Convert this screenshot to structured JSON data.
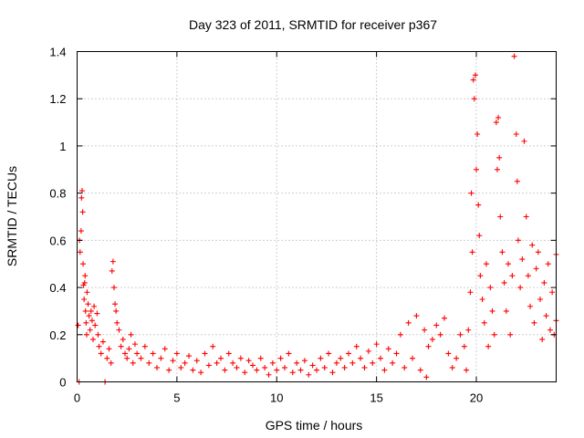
{
  "chart_data": {
    "type": "scatter",
    "title": "Day 323 of 2011, SRMTID for receiver p367",
    "xlabel": "GPS time / hours",
    "ylabel": "SRMTID / TECUs",
    "xlim": [
      0,
      24
    ],
    "ylim": [
      0,
      1.4
    ],
    "xticks": [
      0,
      5,
      10,
      15,
      20
    ],
    "xtick_labels": [
      "0",
      "5",
      "10",
      "15",
      "20"
    ],
    "yticks": [
      0,
      0.2,
      0.4,
      0.6,
      0.8,
      1.0,
      1.2,
      1.4
    ],
    "ytick_labels": [
      "0",
      "0.2",
      "0.4",
      "0.6",
      "0.8",
      "1",
      "1.2",
      "1.4"
    ],
    "grid": true,
    "marker": "+",
    "color": "#ff0000",
    "series": [
      {
        "name": "p367",
        "points": [
          [
            0.05,
            0.24
          ],
          [
            0.1,
            0.0
          ],
          [
            0.12,
            0.6
          ],
          [
            0.15,
            0.55
          ],
          [
            0.2,
            0.64
          ],
          [
            0.22,
            0.78
          ],
          [
            0.25,
            0.81
          ],
          [
            0.28,
            0.72
          ],
          [
            0.3,
            0.5
          ],
          [
            0.32,
            0.41
          ],
          [
            0.35,
            0.35
          ],
          [
            0.38,
            0.42
          ],
          [
            0.4,
            0.45
          ],
          [
            0.42,
            0.3
          ],
          [
            0.45,
            0.25
          ],
          [
            0.48,
            0.2
          ],
          [
            0.5,
            0.38
          ],
          [
            0.55,
            0.33
          ],
          [
            0.6,
            0.28
          ],
          [
            0.65,
            0.22
          ],
          [
            0.7,
            0.3
          ],
          [
            0.75,
            0.26
          ],
          [
            0.8,
            0.18
          ],
          [
            0.85,
            0.32
          ],
          [
            0.9,
            0.24
          ],
          [
            1.0,
            0.29
          ],
          [
            1.05,
            0.2
          ],
          [
            1.1,
            0.15
          ],
          [
            1.2,
            0.12
          ],
          [
            1.3,
            0.17
          ],
          [
            1.4,
            0.0
          ],
          [
            1.5,
            0.1
          ],
          [
            1.6,
            0.14
          ],
          [
            1.7,
            0.08
          ],
          [
            1.75,
            0.47
          ],
          [
            1.8,
            0.51
          ],
          [
            1.85,
            0.4
          ],
          [
            1.9,
            0.33
          ],
          [
            1.95,
            0.3
          ],
          [
            2.0,
            0.25
          ],
          [
            2.1,
            0.22
          ],
          [
            2.2,
            0.15
          ],
          [
            2.3,
            0.18
          ],
          [
            2.4,
            0.12
          ],
          [
            2.5,
            0.1
          ],
          [
            2.6,
            0.14
          ],
          [
            2.7,
            0.2
          ],
          [
            2.8,
            0.08
          ],
          [
            2.9,
            0.16
          ],
          [
            3.0,
            0.12
          ],
          [
            3.2,
            0.1
          ],
          [
            3.4,
            0.15
          ],
          [
            3.6,
            0.08
          ],
          [
            3.8,
            0.12
          ],
          [
            4.0,
            0.06
          ],
          [
            4.2,
            0.1
          ],
          [
            4.4,
            0.14
          ],
          [
            4.6,
            0.05
          ],
          [
            4.8,
            0.09
          ],
          [
            5.0,
            0.12
          ],
          [
            5.2,
            0.06
          ],
          [
            5.4,
            0.08
          ],
          [
            5.6,
            0.11
          ],
          [
            5.8,
            0.05
          ],
          [
            6.0,
            0.09
          ],
          [
            6.2,
            0.04
          ],
          [
            6.4,
            0.12
          ],
          [
            6.6,
            0.07
          ],
          [
            6.8,
            0.15
          ],
          [
            7.0,
            0.08
          ],
          [
            7.2,
            0.1
          ],
          [
            7.4,
            0.05
          ],
          [
            7.6,
            0.12
          ],
          [
            7.8,
            0.08
          ],
          [
            8.0,
            0.06
          ],
          [
            8.2,
            0.1
          ],
          [
            8.4,
            0.04
          ],
          [
            8.6,
            0.09
          ],
          [
            8.8,
            0.07
          ],
          [
            9.0,
            0.05
          ],
          [
            9.2,
            0.1
          ],
          [
            9.4,
            0.06
          ],
          [
            9.6,
            0.03
          ],
          [
            9.8,
            0.08
          ],
          [
            10.0,
            0.05
          ],
          [
            10.2,
            0.1
          ],
          [
            10.4,
            0.06
          ],
          [
            10.6,
            0.12
          ],
          [
            10.8,
            0.04
          ],
          [
            11.0,
            0.08
          ],
          [
            11.2,
            0.05
          ],
          [
            11.4,
            0.09
          ],
          [
            11.6,
            0.03
          ],
          [
            11.8,
            0.07
          ],
          [
            12.0,
            0.05
          ],
          [
            12.2,
            0.1
          ],
          [
            12.4,
            0.06
          ],
          [
            12.6,
            0.12
          ],
          [
            12.8,
            0.04
          ],
          [
            13.0,
            0.08
          ],
          [
            13.2,
            0.1
          ],
          [
            13.4,
            0.06
          ],
          [
            13.6,
            0.12
          ],
          [
            13.8,
            0.08
          ],
          [
            14.0,
            0.15
          ],
          [
            14.2,
            0.1
          ],
          [
            14.4,
            0.06
          ],
          [
            14.6,
            0.13
          ],
          [
            14.8,
            0.08
          ],
          [
            15.0,
            0.16
          ],
          [
            15.2,
            0.1
          ],
          [
            15.4,
            0.05
          ],
          [
            15.6,
            0.14
          ],
          [
            15.8,
            0.08
          ],
          [
            16.0,
            0.12
          ],
          [
            16.2,
            0.2
          ],
          [
            16.4,
            0.06
          ],
          [
            16.6,
            0.25
          ],
          [
            16.8,
            0.1
          ],
          [
            17.0,
            0.28
          ],
          [
            17.2,
            0.05
          ],
          [
            17.4,
            0.22
          ],
          [
            17.5,
            0.02
          ],
          [
            17.6,
            0.15
          ],
          [
            17.8,
            0.18
          ],
          [
            18.0,
            0.24
          ],
          [
            18.2,
            0.2
          ],
          [
            18.4,
            0.27
          ],
          [
            18.6,
            0.12
          ],
          [
            18.8,
            0.06
          ],
          [
            19.0,
            0.1
          ],
          [
            19.2,
            0.2
          ],
          [
            19.4,
            0.15
          ],
          [
            19.5,
            0.05
          ],
          [
            19.6,
            0.22
          ],
          [
            19.7,
            0.38
          ],
          [
            19.75,
            0.8
          ],
          [
            19.8,
            0.55
          ],
          [
            19.85,
            1.28
          ],
          [
            19.9,
            1.2
          ],
          [
            19.95,
            1.3
          ],
          [
            20.0,
            0.9
          ],
          [
            20.05,
            1.05
          ],
          [
            20.1,
            0.75
          ],
          [
            20.15,
            0.62
          ],
          [
            20.2,
            0.45
          ],
          [
            20.3,
            0.35
          ],
          [
            20.4,
            0.25
          ],
          [
            20.5,
            0.5
          ],
          [
            20.6,
            0.15
          ],
          [
            20.7,
            0.4
          ],
          [
            20.8,
            0.3
          ],
          [
            20.9,
            0.2
          ],
          [
            21.0,
            1.1
          ],
          [
            21.05,
            0.9
          ],
          [
            21.1,
            1.12
          ],
          [
            21.15,
            0.95
          ],
          [
            21.2,
            0.7
          ],
          [
            21.3,
            0.55
          ],
          [
            21.4,
            0.42
          ],
          [
            21.5,
            0.3
          ],
          [
            21.6,
            0.5
          ],
          [
            21.7,
            0.2
          ],
          [
            21.8,
            0.45
          ],
          [
            21.9,
            1.38
          ],
          [
            22.0,
            1.05
          ],
          [
            22.05,
            0.85
          ],
          [
            22.1,
            0.6
          ],
          [
            22.2,
            0.4
          ],
          [
            22.3,
            0.52
          ],
          [
            22.4,
            1.02
          ],
          [
            22.5,
            0.7
          ],
          [
            22.6,
            0.45
          ],
          [
            22.7,
            0.32
          ],
          [
            22.8,
            0.58
          ],
          [
            22.9,
            0.25
          ],
          [
            23.0,
            0.48
          ],
          [
            23.1,
            0.55
          ],
          [
            23.2,
            0.35
          ],
          [
            23.3,
            0.18
          ],
          [
            23.4,
            0.42
          ],
          [
            23.5,
            0.28
          ],
          [
            23.6,
            0.5
          ],
          [
            23.7,
            0.22
          ],
          [
            23.8,
            0.38
          ],
          [
            23.9,
            0.2
          ],
          [
            24.0,
            0.26
          ],
          [
            24.0,
            0.54
          ]
        ]
      }
    ]
  }
}
